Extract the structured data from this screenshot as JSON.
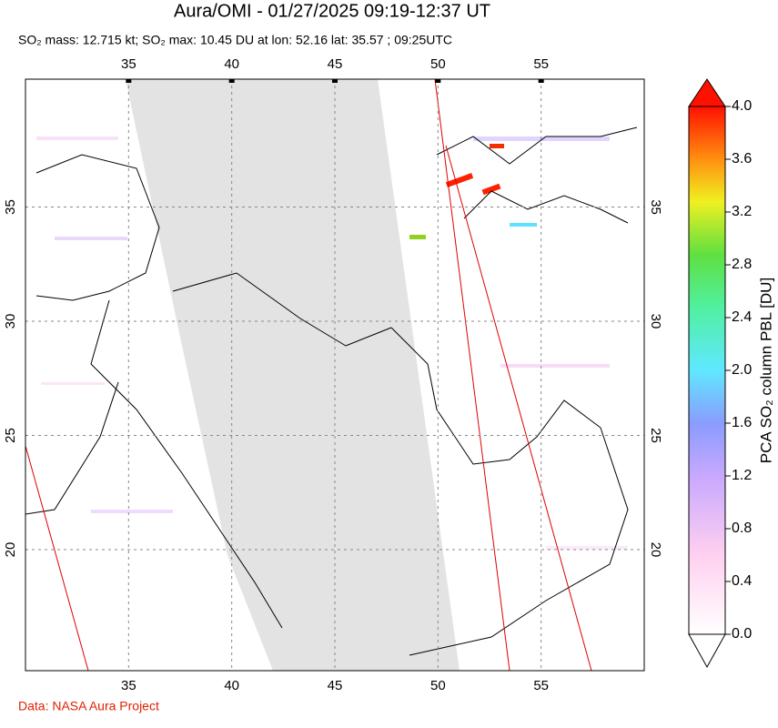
{
  "title": "Aura/OMI - 01/27/2025 09:19-12:37 UT",
  "subtitle": "SO₂ mass: 12.715 kt; SO₂ max: 10.45 DU at lon: 52.16 lat: 35.57 ; 09:25UTC",
  "map": {
    "lon_range": [
      30,
      60
    ],
    "lat_range": [
      14.7,
      40.6
    ],
    "lon_ticks": [
      35,
      40,
      45,
      50,
      55
    ],
    "lat_ticks": [
      20,
      25,
      30,
      35
    ]
  },
  "colorbar": {
    "label": "PCA SO₂ column PBL [DU]",
    "range": [
      0,
      4
    ],
    "ticks": [
      {
        "value": 0,
        "label": "0.0"
      },
      {
        "value": 0.4,
        "label": "0.4"
      },
      {
        "value": 0.8,
        "label": "0.8"
      },
      {
        "value": 1.2,
        "label": "1.2"
      },
      {
        "value": 1.6,
        "label": "1.6"
      },
      {
        "value": 2,
        "label": "2.0"
      },
      {
        "value": 2.4,
        "label": "2.4"
      },
      {
        "value": 2.8,
        "label": "2.8"
      },
      {
        "value": 3.2,
        "label": "3.2"
      },
      {
        "value": 3.6,
        "label": "3.6"
      },
      {
        "value": 4,
        "label": "4.0"
      }
    ]
  },
  "footer": "Data: NASA Aura Project"
}
